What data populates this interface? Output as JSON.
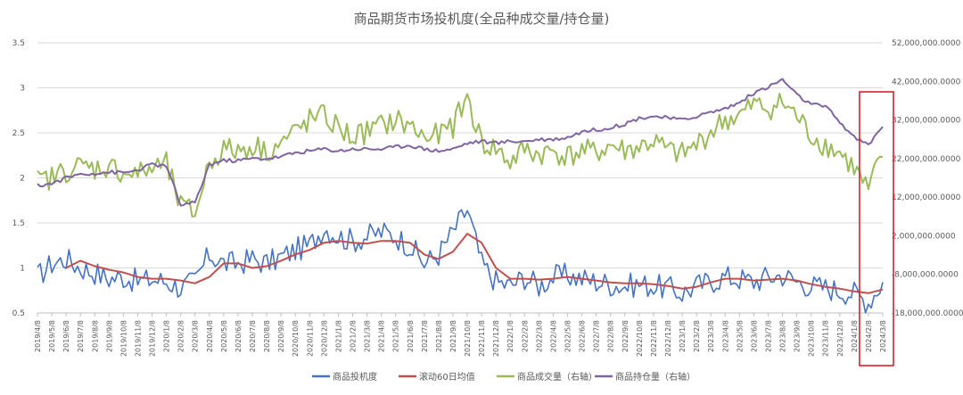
{
  "chart_data": {
    "type": "line",
    "title": "商品期货市场投机度(全品种成交量/持仓量)",
    "left_axis": {
      "ticks": [
        "0.5",
        "1",
        "1.5",
        "2",
        "2.5",
        "3",
        "3.5"
      ],
      "min": 0.5,
      "max": 3.5
    },
    "right_axis": {
      "ticks": [
        "-18,000,000.0000",
        "-8,000,000.0000",
        "2,000,000.0000",
        "12,000,000.0000",
        "22,000,000.0000",
        "32,000,000.0000",
        "42,000,000.0000",
        "52,000,000.0000"
      ],
      "min": -18000000,
      "max": 52000000
    },
    "x_labels": [
      "2019/4/8",
      "2019/5/8",
      "2019/6/8",
      "2019/7/8",
      "2019/8/8",
      "2019/9/8",
      "2019/10/8",
      "2019/11/8",
      "2019/12/8",
      "2020/1/8",
      "2020/2/8",
      "2020/3/8",
      "2020/4/8",
      "2020/5/8",
      "2020/6/8",
      "2020/7/8",
      "2020/8/8",
      "2020/9/8",
      "2020/10/8",
      "2020/11/8",
      "2020/12/8",
      "2021/1/8",
      "2021/2/8",
      "2021/3/8",
      "2021/4/8",
      "2021/5/8",
      "2021/6/8",
      "2021/7/8",
      "2021/8/8",
      "2021/9/8",
      "2021/10/8",
      "2021/11/8",
      "2021/12/8",
      "2022/1/8",
      "2022/2/8",
      "2022/3/8",
      "2022/4/8",
      "2022/5/8",
      "2022/6/8",
      "2022/7/8",
      "2022/8/8",
      "2022/9/8",
      "2022/10/8",
      "2022/11/8",
      "2022/12/8",
      "2023/1/8",
      "2023/2/8",
      "2023/3/8",
      "2023/4/8",
      "2023/5/8",
      "2023/6/8",
      "2023/7/8",
      "2023/8/8",
      "2023/9/8",
      "2023/10/8",
      "2023/11/8",
      "2023/12/8",
      "2024/1/8",
      "2024/2/8",
      "2024/3/8"
    ],
    "series": [
      {
        "name": "商品投机度",
        "axis": "left",
        "color": "#4472C4",
        "values": [
          0.9,
          1.05,
          1.1,
          1.0,
          0.95,
          0.88,
          0.9,
          0.85,
          0.87,
          0.85,
          0.78,
          0.85,
          1.15,
          1.05,
          1.05,
          1.1,
          1.05,
          1.12,
          1.2,
          1.25,
          1.45,
          1.35,
          1.3,
          1.35,
          1.4,
          1.35,
          1.25,
          1.05,
          1.15,
          1.4,
          1.65,
          1.05,
          0.85,
          0.8,
          0.9,
          0.8,
          0.9,
          0.92,
          0.88,
          0.85,
          0.82,
          0.8,
          0.82,
          0.8,
          0.78,
          0.72,
          0.8,
          0.85,
          0.9,
          0.88,
          0.85,
          0.9,
          0.92,
          0.85,
          0.8,
          0.78,
          0.75,
          0.72,
          0.62,
          0.85
        ],
        "noise": 0.14
      },
      {
        "name": "滚动60日均值",
        "axis": "left",
        "color": "#C0504D",
        "values": [
          null,
          null,
          1.0,
          1.08,
          1.02,
          0.98,
          0.95,
          0.9,
          0.88,
          0.88,
          0.86,
          0.83,
          0.9,
          1.05,
          1.05,
          1.0,
          1.02,
          1.08,
          1.15,
          1.2,
          1.28,
          1.3,
          1.28,
          1.27,
          1.3,
          1.3,
          1.28,
          1.15,
          1.1,
          1.18,
          1.38,
          1.28,
          1.0,
          0.88,
          0.88,
          0.87,
          0.88,
          0.9,
          0.88,
          0.86,
          0.84,
          0.83,
          0.83,
          0.82,
          0.8,
          0.77,
          0.79,
          0.84,
          0.88,
          0.88,
          0.86,
          0.87,
          0.88,
          0.86,
          0.82,
          0.79,
          0.77,
          0.74,
          0.72,
          0.76
        ],
        "noise": 0
      },
      {
        "name": "商品成交量（右轴）",
        "axis": "right",
        "color": "#9BBB59",
        "values": [
          16000000,
          17000000,
          19000000,
          20000000,
          19500000,
          20000000,
          18500000,
          18000000,
          19500000,
          20500000,
          9500000,
          8000000,
          21000000,
          24500000,
          24000000,
          25500000,
          24000000,
          26000000,
          29000000,
          32000000,
          33000000,
          30000000,
          27500000,
          29000000,
          30500000,
          32000000,
          30500000,
          27500000,
          28000000,
          30500000,
          38000000,
          26000000,
          24500000,
          21000000,
          24500000,
          23000000,
          24000000,
          22500000,
          24000000,
          23500000,
          25500000,
          24000000,
          25000000,
          26500000,
          24000000,
          23000000,
          25500000,
          29000000,
          32000000,
          33000000,
          36000000,
          35000000,
          36500000,
          33000000,
          28000000,
          25500000,
          23500000,
          19500000,
          13500000,
          23500000
        ],
        "noise": 3200000
      },
      {
        "name": "商品持仓量（右轴）",
        "axis": "right",
        "color": "#8064A2",
        "values": [
          15000000,
          15500000,
          17000000,
          18000000,
          18200000,
          18500000,
          18300000,
          19000000,
          20500000,
          20000000,
          10000000,
          10500000,
          20500000,
          21500000,
          21500000,
          22000000,
          22000000,
          22500000,
          23500000,
          24000000,
          24500000,
          24000000,
          24500000,
          24500000,
          24500000,
          25000000,
          25500000,
          24500000,
          24000000,
          24500000,
          26000000,
          26500000,
          26000000,
          26500000,
          26500000,
          27000000,
          27000000,
          27500000,
          29000000,
          29500000,
          30000000,
          31000000,
          32500000,
          33000000,
          32500000,
          32000000,
          33000000,
          34000000,
          35000000,
          36500000,
          39000000,
          40500000,
          42500000,
          38500000,
          36000000,
          35500000,
          31500000,
          27500000,
          25500000,
          30500000
        ],
        "noise": 500000
      }
    ],
    "highlight_box": {
      "from_label": "2024/2/8",
      "to_label": "2024/3/8",
      "color": "#E02020"
    }
  }
}
